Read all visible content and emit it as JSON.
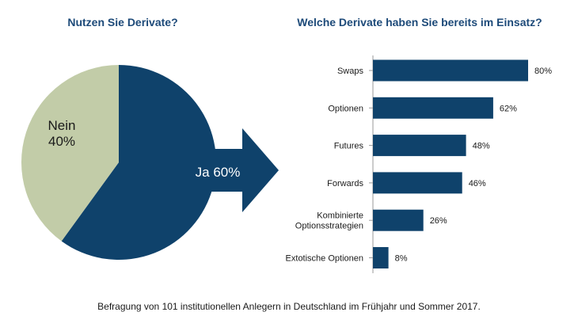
{
  "colors": {
    "primary": "#0f426b",
    "secondary": "#c2cca8",
    "title": "#1d4a79",
    "text": "#1a1a1a",
    "axis": "#9a9a9a"
  },
  "chart_data": [
    {
      "type": "pie",
      "title": "Nutzen Sie Derivate?",
      "slices": [
        {
          "label": "Ja",
          "value": 60,
          "display": "Ja 60%",
          "color": "#0f426b"
        },
        {
          "label": "Nein",
          "value": 40,
          "display_line1": "Nein",
          "display_line2": "40%",
          "color": "#c2cca8"
        }
      ]
    },
    {
      "type": "bar",
      "orientation": "horizontal",
      "title": "Welche Derivate haben Sie bereits im Einsatz?",
      "categories": [
        [
          "Swaps"
        ],
        [
          "Optionen"
        ],
        [
          "Futures"
        ],
        [
          "Forwards"
        ],
        [
          "Kombinierte",
          "Optionsstrategien"
        ],
        [
          "Extotische Optionen"
        ]
      ],
      "values": [
        80,
        62,
        48,
        46,
        26,
        8
      ],
      "value_labels": [
        "80%",
        "62%",
        "48%",
        "46%",
        "26%",
        "8%"
      ],
      "xlim": [
        0,
        80
      ],
      "grid": false
    }
  ],
  "footnote": "Befragung von 101 institutionellen Anlegern in Deutschland im Frühjahr und Sommer 2017."
}
